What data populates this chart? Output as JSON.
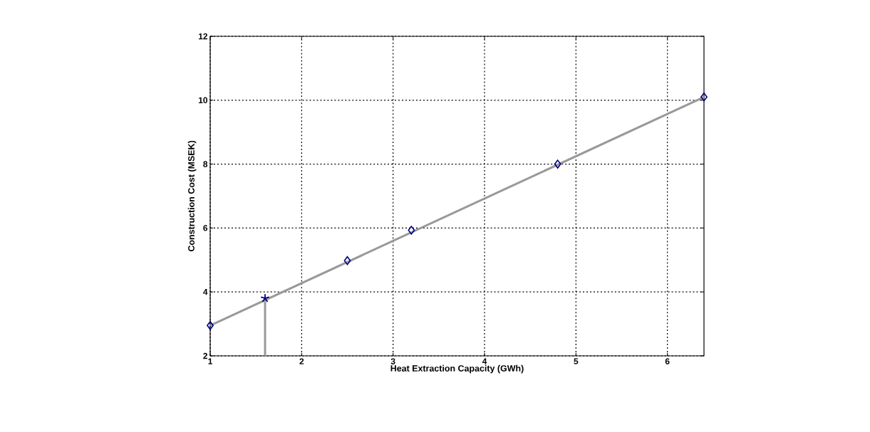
{
  "chart_data": {
    "type": "scatter",
    "xlabel": "Heat Extraction Capacity (GWh)",
    "ylabel": "Construction Cost (MSEK)",
    "xlim": [
      1,
      6.4
    ],
    "ylim": [
      2,
      12
    ],
    "xticks": [
      1,
      2,
      3,
      4,
      5,
      6
    ],
    "yticks": [
      2,
      4,
      6,
      8,
      10,
      12
    ],
    "grid": true,
    "series": [
      {
        "type": "line",
        "color": "#999999",
        "x": [
          1,
          6.4
        ],
        "values": [
          2.95,
          10.1
        ],
        "marker": "none"
      },
      {
        "type": "line",
        "color": "#999999",
        "x": [
          1.6,
          1.6
        ],
        "values": [
          2,
          3.8
        ],
        "marker": "none"
      },
      {
        "color": "#000080",
        "x": [
          1,
          2.5,
          3.2,
          4.8,
          6.4
        ],
        "values": [
          2.95,
          4.98,
          5.93,
          8.0,
          10.1
        ],
        "marker": "diamond"
      },
      {
        "color": "#000080",
        "x": [
          1.6
        ],
        "values": [
          3.8
        ],
        "marker": "cross"
      }
    ]
  }
}
